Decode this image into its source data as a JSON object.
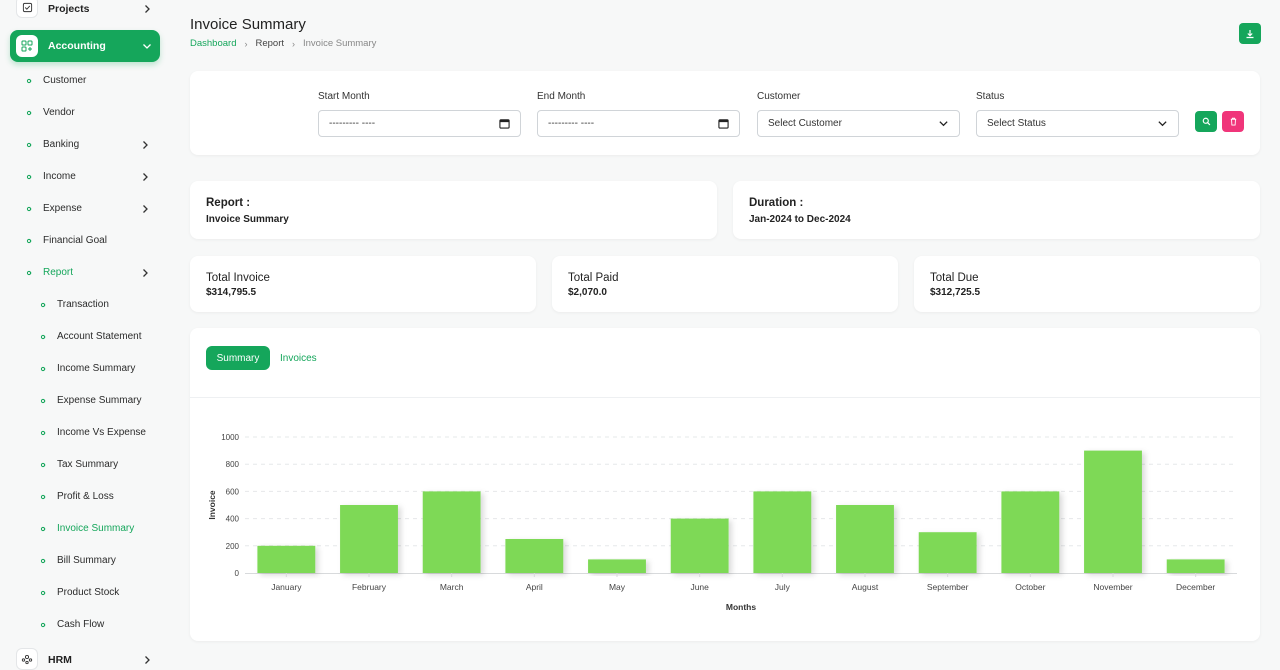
{
  "sidebar": {
    "projects": "Projects",
    "accounting": "Accounting",
    "items": [
      {
        "label": "Customer",
        "chevron": false,
        "level": 1
      },
      {
        "label": "Vendor",
        "chevron": false,
        "level": 1
      },
      {
        "label": "Banking",
        "chevron": true,
        "level": 1
      },
      {
        "label": "Income",
        "chevron": true,
        "level": 1
      },
      {
        "label": "Expense",
        "chevron": true,
        "level": 1
      },
      {
        "label": "Financial Goal",
        "chevron": false,
        "level": 1
      },
      {
        "label": "Report",
        "chevron": true,
        "level": 1,
        "active": true
      },
      {
        "label": "Transaction",
        "chevron": false,
        "level": 2
      },
      {
        "label": "Account Statement",
        "chevron": false,
        "level": 2
      },
      {
        "label": "Income Summary",
        "chevron": false,
        "level": 2
      },
      {
        "label": "Expense Summary",
        "chevron": false,
        "level": 2
      },
      {
        "label": "Income Vs Expense",
        "chevron": false,
        "level": 2
      },
      {
        "label": "Tax Summary",
        "chevron": false,
        "level": 2
      },
      {
        "label": "Profit & Loss",
        "chevron": false,
        "level": 2
      },
      {
        "label": "Invoice Summary",
        "chevron": false,
        "level": 2,
        "active": true
      },
      {
        "label": "Bill Summary",
        "chevron": false,
        "level": 2
      },
      {
        "label": "Product Stock",
        "chevron": false,
        "level": 2
      },
      {
        "label": "Cash Flow",
        "chevron": false,
        "level": 2
      }
    ],
    "hrm": "HRM"
  },
  "header": {
    "title": "Invoice Summary",
    "breadcrumb": [
      "Dashboard",
      "Report",
      "Invoice Summary"
    ]
  },
  "filters": {
    "start_month_label": "Start Month",
    "start_month_value": "--------- ----",
    "end_month_label": "End Month",
    "end_month_value": "--------- ----",
    "customer_label": "Customer",
    "customer_value": "Select Customer",
    "status_label": "Status",
    "status_value": "Select Status"
  },
  "info": {
    "report_title": "Report :",
    "report_value": "Invoice Summary",
    "duration_title": "Duration :",
    "duration_value": "Jan-2024 to Dec-2024"
  },
  "stats": {
    "total_invoice_label": "Total Invoice",
    "total_invoice_value": "$314,795.5",
    "total_paid_label": "Total Paid",
    "total_paid_value": "$2,070.0",
    "total_due_label": "Total Due",
    "total_due_value": "$312,725.5"
  },
  "tabs": {
    "summary": "Summary",
    "invoices": "Invoices"
  },
  "colors": {
    "brand": "#15a65b",
    "danger": "#f0357a",
    "bar": "#7ed957"
  },
  "chart_data": {
    "type": "bar",
    "categories": [
      "January",
      "February",
      "March",
      "April",
      "May",
      "June",
      "July",
      "August",
      "September",
      "October",
      "November",
      "December"
    ],
    "values": [
      200,
      500,
      600,
      250,
      100,
      400,
      600,
      500,
      300,
      600,
      900,
      100
    ],
    "xlabel": "Months",
    "ylabel": "Invoice",
    "ylim": [
      0,
      1000
    ],
    "yticks": [
      0,
      200,
      400,
      600,
      800,
      1000
    ],
    "grid": true
  }
}
